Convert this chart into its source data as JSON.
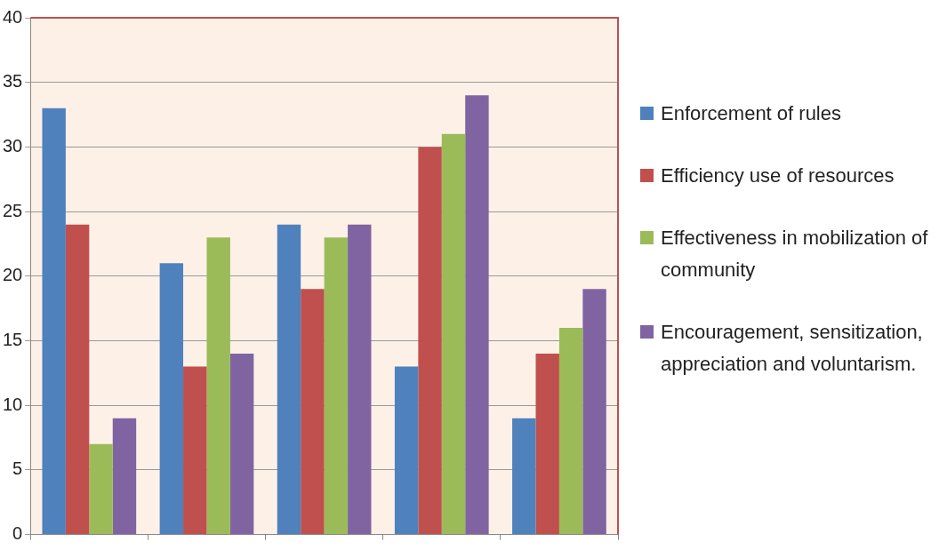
{
  "chart_data": {
    "type": "bar",
    "categories": [
      null,
      null,
      null,
      null,
      null
    ],
    "series": [
      {
        "name": "Enforcement of rules",
        "color": "#4f81bd",
        "values": [
          33,
          21,
          24,
          13,
          9
        ]
      },
      {
        "name": "Efficiency use of resources",
        "color": "#c0504d",
        "values": [
          24,
          13,
          19,
          30,
          14
        ]
      },
      {
        "name": "Effectiveness in mobilization of community",
        "color": "#9bbb59",
        "values": [
          7,
          23,
          23,
          31,
          16
        ]
      },
      {
        "name": "Encouragement, sensitization, appreciation and voluntarism.",
        "color": "#8064a2",
        "values": [
          9,
          14,
          24,
          34,
          19
        ]
      }
    ],
    "ylim": [
      0,
      40
    ],
    "yticks": [
      0,
      5,
      10,
      15,
      20,
      25,
      30,
      35,
      40
    ],
    "grid": "y",
    "legend": "right"
  }
}
